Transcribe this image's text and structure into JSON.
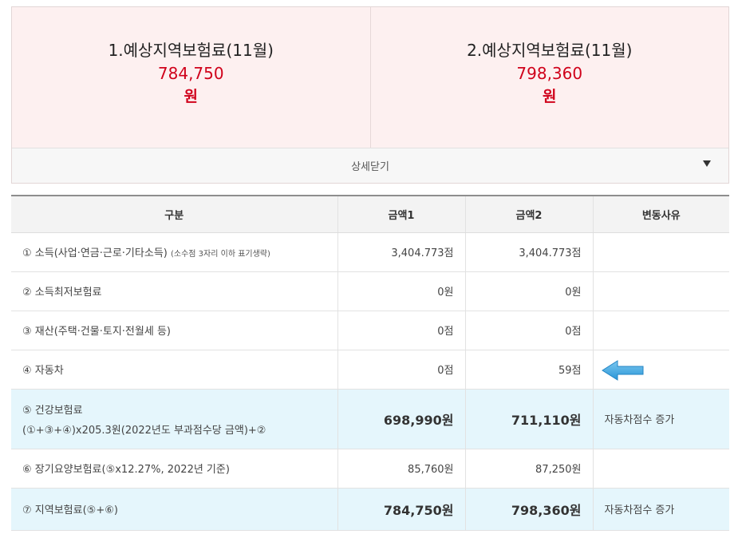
{
  "summary": {
    "items": [
      {
        "title": "1.예상지역보험료(11월)",
        "amount": "784,750",
        "unit": "원"
      },
      {
        "title": "2.예상지역보험료(11월)",
        "amount": "798,360",
        "unit": "원"
      }
    ],
    "toggle_label": "상세닫기",
    "toggle_icon": "triangle-down-icon"
  },
  "table": {
    "headers": [
      "구분",
      "금액1",
      "금액2",
      "변동사유"
    ],
    "rows": [
      {
        "label": "① 소득(사업·연금·근로·기타소득)",
        "note": "(소수점 3자리 이하 표기생략)",
        "amount1": "3,404.773점",
        "amount2": "3,404.773점",
        "reason": ""
      },
      {
        "label": "② 소득최저보험료",
        "amount1": "0원",
        "amount2": "0원",
        "reason": ""
      },
      {
        "label": "③ 재산(주택·건물·토지·전월세 등)",
        "amount1": "0점",
        "amount2": "0점",
        "reason": ""
      },
      {
        "label": "④ 자동차",
        "amount1": "0점",
        "amount2": "59점",
        "reason": "",
        "reason_icon": "left-arrow-icon"
      },
      {
        "label": "⑤ 건강보험료",
        "label_line2": "(①+③+④)x205.3원(2022년도 부과점수당 금액)+②",
        "amount1": "698,990원",
        "amount2": "711,110원",
        "reason": "자동차점수 증가"
      },
      {
        "label": "⑥ 장기요양보험료(⑤x12.27%, 2022년 기준)",
        "amount1": "85,760원",
        "amount2": "87,250원",
        "reason": ""
      },
      {
        "label": "⑦ 지역보험료(⑤+⑥)",
        "amount1": "784,750원",
        "amount2": "798,360원",
        "reason": "자동차점수 증가"
      }
    ]
  },
  "colors": {
    "summary_background": "#fdf0f0",
    "amount_red": "#d0021b",
    "highlight_row": "#e5f6fc",
    "arrow_blue": "#39a8e6"
  }
}
